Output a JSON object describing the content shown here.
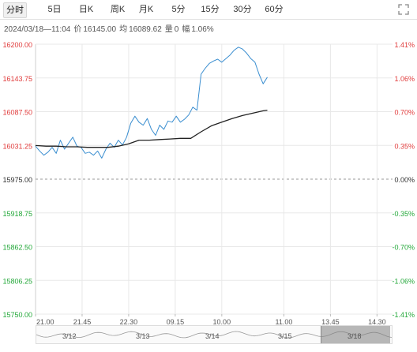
{
  "tabs": [
    {
      "label": "分时",
      "active": true
    },
    {
      "label": "5日",
      "active": false
    },
    {
      "label": "日K",
      "active": false
    },
    {
      "label": "周K",
      "active": false
    },
    {
      "label": "月K",
      "active": false
    },
    {
      "label": "5分",
      "active": false
    },
    {
      "label": "15分",
      "active": false
    },
    {
      "label": "30分",
      "active": false
    },
    {
      "label": "60分",
      "active": false
    }
  ],
  "info": {
    "datetime": "2024/03/18—11:04",
    "price_label": "价",
    "price": "16145.00",
    "avg_label": "均",
    "avg": "16089.62",
    "volume_label": "量",
    "volume": "0",
    "change_label": "幅",
    "change": "1.06%"
  },
  "colors": {
    "price_line": "#3a8ed0",
    "avg_line": "#222222",
    "up": "#e03c3c",
    "down": "#24a83a",
    "neutral": "#333333",
    "grid": "#e8e8e8",
    "baseline": "#999999"
  },
  "chart_data": {
    "type": "line",
    "title": "",
    "xlabel": "",
    "ylabel": "",
    "prev_close": 15975.0,
    "ylim": [
      15750.0,
      16200.0
    ],
    "y_ticks": [
      "16200.00",
      "16143.75",
      "16087.50",
      "16031.25",
      "15975.00",
      "15918.75",
      "15862.50",
      "15806.25",
      "15750.00"
    ],
    "pct_ticks": [
      "1.41%",
      "1.06%",
      "0.70%",
      "0.35%",
      "0.00%",
      "-0.35%",
      "-0.70%",
      "-1.06%",
      "-1.41%"
    ],
    "x_ticks": [
      "21.00",
      "21.45",
      "22.30",
      "09.15",
      "10.00",
      "11.00",
      "13.45",
      "14.30"
    ],
    "x_tick_minutes": [
      0,
      45,
      90,
      135,
      180,
      240,
      285,
      330
    ],
    "x_range": [
      0,
      345
    ],
    "series": [
      {
        "name": "",
        "role": "price",
        "x": [
          0,
          4,
          8,
          12,
          16,
          20,
          24,
          28,
          32,
          36,
          40,
          44,
          48,
          52,
          56,
          60,
          64,
          68,
          72,
          76,
          80,
          84,
          88,
          92,
          96,
          100,
          104,
          108,
          112,
          116,
          120,
          124,
          128,
          132,
          136,
          140,
          144,
          148,
          152,
          156,
          160,
          164,
          168,
          172,
          176,
          180,
          184,
          188,
          192,
          196,
          200,
          204,
          208,
          212,
          216,
          220,
          224
        ],
        "values": [
          16030,
          16022,
          16015,
          16020,
          16028,
          16018,
          16040,
          16025,
          16035,
          16045,
          16030,
          16028,
          16018,
          16020,
          16015,
          16022,
          16010,
          16025,
          16035,
          16028,
          16040,
          16032,
          16045,
          16068,
          16080,
          16070,
          16065,
          16076,
          16058,
          16048,
          16065,
          16058,
          16072,
          16070,
          16080,
          16070,
          16075,
          16082,
          16095,
          16090,
          16150,
          16160,
          16168,
          16172,
          16175,
          16170,
          16176,
          16182,
          16190,
          16195,
          16192,
          16185,
          16176,
          16170,
          16150,
          16134,
          16145
        ]
      },
      {
        "name": "",
        "role": "average",
        "x": [
          0,
          10,
          20,
          30,
          40,
          50,
          60,
          70,
          80,
          90,
          100,
          110,
          120,
          130,
          140,
          150,
          160,
          170,
          180,
          190,
          200,
          210,
          220,
          224
        ],
        "values": [
          16031,
          16030,
          16030,
          16029,
          16029,
          16028,
          16028,
          16028,
          16030,
          16034,
          16040,
          16040,
          16041,
          16042,
          16043,
          16043,
          16054,
          16064,
          16070,
          16076,
          16081,
          16085,
          16089,
          16090
        ]
      }
    ]
  },
  "navigator": {
    "dates": [
      "3/12",
      "3/13",
      "3/14",
      "3/15",
      "3/18"
    ]
  }
}
